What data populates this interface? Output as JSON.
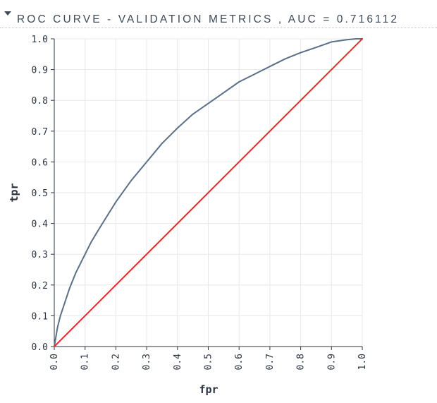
{
  "panel": {
    "title": "ROC CURVE - VALIDATION METRICS , AUC = 0.716112",
    "collapse_icon": "caret-down-icon"
  },
  "chart_data": {
    "type": "line",
    "title": "ROC CURVE - VALIDATION METRICS , AUC = 0.716112",
    "xlabel": "fpr",
    "ylabel": "tpr",
    "xlim": [
      0,
      1
    ],
    "ylim": [
      0,
      1
    ],
    "grid": true,
    "xticks": [
      "0.0",
      "0.1",
      "0.2",
      "0.3",
      "0.4",
      "0.5",
      "0.6",
      "0.7",
      "0.8",
      "0.9",
      "1.0"
    ],
    "yticks": [
      "0.0",
      "0.1",
      "0.2",
      "0.3",
      "0.4",
      "0.5",
      "0.6",
      "0.7",
      "0.8",
      "0.9",
      "1.0"
    ],
    "series": [
      {
        "color": "#5b6f87",
        "x": [
          0,
          0.005,
          0.01,
          0.02,
          0.03,
          0.05,
          0.07,
          0.1,
          0.12,
          0.15,
          0.2,
          0.25,
          0.3,
          0.35,
          0.4,
          0.45,
          0.5,
          0.55,
          0.6,
          0.65,
          0.7,
          0.75,
          0.8,
          0.85,
          0.9,
          0.95,
          0.98,
          1.0
        ],
        "y": [
          0,
          0.03,
          0.06,
          0.1,
          0.13,
          0.19,
          0.24,
          0.3,
          0.34,
          0.39,
          0.47,
          0.54,
          0.6,
          0.66,
          0.71,
          0.755,
          0.79,
          0.825,
          0.86,
          0.885,
          0.91,
          0.935,
          0.955,
          0.972,
          0.99,
          0.997,
          1.0,
          1.0
        ]
      },
      {
        "color": "#e8292a",
        "x": [
          0,
          1
        ],
        "y": [
          0,
          1
        ]
      }
    ]
  }
}
